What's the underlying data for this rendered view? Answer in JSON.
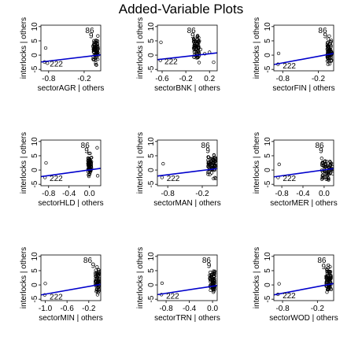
{
  "figure": {
    "title": "Added-Variable Plots",
    "line_color": "#0000cc",
    "point_color": "#000000"
  },
  "chart_data": [
    {
      "type": "scatter",
      "xlabel": "sectorAGR | others",
      "ylabel": "interlocks | others",
      "xlim": [
        -0.93,
        0.08
      ],
      "ylim": [
        -5.5,
        10.5
      ],
      "xticks": [
        -0.8,
        -0.2
      ],
      "xtick_labels": [
        "-0.8",
        "-0.2"
      ],
      "yticks": [
        -5,
        0,
        5,
        10
      ],
      "ytick_labels": [
        "-5",
        "0",
        "5",
        "10"
      ],
      "fit_line": {
        "x": [
          -0.93,
          0.08
        ],
        "y": [
          -2.4,
          0.1
        ]
      },
      "cluster": {
        "x_min": -0.05,
        "x_max": 0.04,
        "y_min": -4.3,
        "y_max": 7.5
      },
      "outliers": [
        {
          "x": -0.85,
          "y": 2.5
        },
        {
          "x": -0.87,
          "y": -2.4
        },
        {
          "x": -0.82,
          "y": -2.8
        }
      ],
      "point_labels": [
        {
          "text": "86",
          "x": -0.18,
          "y": 8.6
        },
        {
          "text": "9",
          "x": -0.12,
          "y": 6.8
        },
        {
          "text": "222",
          "x": -0.78,
          "y": -3.2
        }
      ]
    },
    {
      "type": "scatter",
      "xlabel": "sectorBNK | others",
      "ylabel": "interlocks | others",
      "xlim": [
        -0.68,
        0.33
      ],
      "ylim": [
        -5.5,
        10.5
      ],
      "xticks": [
        -0.6,
        -0.2,
        0.2
      ],
      "xtick_labels": [
        "-0.6",
        "-0.2",
        "0.2"
      ],
      "yticks": [
        -5,
        0,
        5,
        10
      ],
      "ytick_labels": [
        "-5",
        "0",
        "5",
        "10"
      ],
      "fit_line": {
        "x": [
          -0.68,
          0.33
        ],
        "y": [
          -1.6,
          0.8
        ]
      },
      "cluster": {
        "x_min": -0.07,
        "x_max": 0.03,
        "y_min": -4.0,
        "y_max": 9.5
      },
      "outliers": [
        {
          "x": -0.62,
          "y": 4.5
        },
        {
          "x": -0.63,
          "y": -1.8
        },
        {
          "x": 0.05,
          "y": 2.0
        },
        {
          "x": 0.12,
          "y": 0.5
        },
        {
          "x": 0.2,
          "y": 1.0
        },
        {
          "x": 0.27,
          "y": -2.5
        }
      ],
      "point_labels": [
        {
          "text": "86",
          "x": -0.18,
          "y": 8.6
        },
        {
          "text": "9",
          "x": -0.12,
          "y": 6.8
        },
        {
          "text": "222",
          "x": -0.56,
          "y": -2.3
        }
      ]
    },
    {
      "type": "scatter",
      "xlabel": "sectorFIN | others",
      "ylabel": "interlocks | others",
      "xlim": [
        -0.95,
        0.06
      ],
      "ylim": [
        -5.5,
        10.5
      ],
      "xticks": [
        -0.8,
        -0.2
      ],
      "xtick_labels": [
        "-0.8",
        "-0.2"
      ],
      "yticks": [
        -5,
        0,
        5,
        10
      ],
      "ytick_labels": [
        "-5",
        "0",
        "5",
        "10"
      ],
      "fit_line": {
        "x": [
          -0.95,
          0.06
        ],
        "y": [
          -3.3,
          0.6
        ]
      },
      "cluster": {
        "x_min": -0.05,
        "x_max": 0.03,
        "y_min": -4.5,
        "y_max": 7.5
      },
      "outliers": [
        {
          "x": -0.87,
          "y": 0.6
        },
        {
          "x": -0.88,
          "y": -3.2
        }
      ],
      "point_labels": [
        {
          "text": "86",
          "x": -0.2,
          "y": 8.6
        },
        {
          "text": "9",
          "x": -0.12,
          "y": 6.8
        },
        {
          "text": "222",
          "x": -0.8,
          "y": -3.8
        }
      ]
    },
    {
      "type": "scatter",
      "xlabel": "sectorHLD | others",
      "ylabel": "interlocks | others",
      "xlim": [
        -0.95,
        0.22
      ],
      "ylim": [
        -5.5,
        10.5
      ],
      "xticks": [
        -0.8,
        -0.4,
        0.0
      ],
      "xtick_labels": [
        "-0.8",
        "-0.4",
        "0.0"
      ],
      "yticks": [
        -5,
        0,
        5,
        10
      ],
      "ytick_labels": [
        "-5",
        "0",
        "5",
        "10"
      ],
      "fit_line": {
        "x": [
          -0.95,
          0.22
        ],
        "y": [
          -2.3,
          0.6
        ]
      },
      "cluster": {
        "x_min": -0.03,
        "x_max": 0.04,
        "y_min": -4.0,
        "y_max": 7.0
      },
      "outliers": [
        {
          "x": -0.85,
          "y": 2.5
        },
        {
          "x": 0.15,
          "y": 7.8
        },
        {
          "x": 0.16,
          "y": -2.0
        },
        {
          "x": -0.87,
          "y": -2.6
        }
      ],
      "point_labels": [
        {
          "text": "86",
          "x": -0.17,
          "y": 8.6
        },
        {
          "text": "9",
          "x": -0.1,
          "y": 6.8
        },
        {
          "text": "222",
          "x": -0.78,
          "y": -3.0
        }
      ]
    },
    {
      "type": "scatter",
      "xlabel": "sectorMAN | others",
      "ylabel": "interlocks | others",
      "xlim": [
        -0.98,
        0.06
      ],
      "ylim": [
        -5.5,
        10.5
      ],
      "xticks": [
        -0.8,
        -0.2
      ],
      "xtick_labels": [
        "-0.8",
        "-0.2"
      ],
      "yticks": [
        -5,
        0,
        5,
        10
      ],
      "ytick_labels": [
        "-5",
        "0",
        "5",
        "10"
      ],
      "fit_line": {
        "x": [
          -0.98,
          0.06
        ],
        "y": [
          -2.1,
          0.5
        ]
      },
      "cluster": {
        "x_min": -0.1,
        "x_max": 0.04,
        "y_min": -4.2,
        "y_max": 7.5
      },
      "outliers": [
        {
          "x": -0.88,
          "y": 2.2
        },
        {
          "x": -0.9,
          "y": -2.6
        }
      ],
      "point_labels": [
        {
          "text": "86",
          "x": -0.22,
          "y": 8.6
        },
        {
          "text": "9",
          "x": -0.14,
          "y": 6.8
        },
        {
          "text": "222",
          "x": -0.82,
          "y": -3.0
        }
      ]
    },
    {
      "type": "scatter",
      "xlabel": "sectorMER | others",
      "ylabel": "interlocks | others",
      "xlim": [
        -0.95,
        0.18
      ],
      "ylim": [
        -5.5,
        10.5
      ],
      "xticks": [
        -0.8,
        -0.4,
        0.0
      ],
      "xtick_labels": [
        "-0.8",
        "-0.4",
        "0.0"
      ],
      "yticks": [
        -5,
        0,
        5,
        10
      ],
      "ytick_labels": [
        "-5",
        "0",
        "5",
        "10"
      ],
      "fit_line": {
        "x": [
          -0.95,
          0.18
        ],
        "y": [
          -2.4,
          0.5
        ]
      },
      "cluster": {
        "x_min": -0.05,
        "x_max": 0.17,
        "y_min": -4.2,
        "y_max": 5.0
      },
      "outliers": [
        {
          "x": -0.85,
          "y": 2.0
        },
        {
          "x": -0.87,
          "y": -2.6
        }
      ],
      "point_labels": [
        {
          "text": "86",
          "x": -0.17,
          "y": 8.6
        },
        {
          "text": "9",
          "x": -0.1,
          "y": 6.8
        },
        {
          "text": "222",
          "x": -0.78,
          "y": -3.0
        }
      ]
    },
    {
      "type": "scatter",
      "xlabel": "sectorMIN | others",
      "ylabel": "interlocks | others",
      "xlim": [
        -1.08,
        0.02
      ],
      "ylim": [
        -5.5,
        10.5
      ],
      "xticks": [
        -1.0,
        -0.6,
        -0.2
      ],
      "xtick_labels": [
        "-1.0",
        "-0.6",
        "-0.2"
      ],
      "yticks": [
        -5,
        0,
        5,
        10
      ],
      "ytick_labels": [
        "-5",
        "0",
        "5",
        "10"
      ],
      "fit_line": {
        "x": [
          -1.08,
          0.02
        ],
        "y": [
          -3.5,
          0.2
        ]
      },
      "cluster": {
        "x_min": -0.08,
        "x_max": 0.0,
        "y_min": -4.5,
        "y_max": 7.0
      },
      "outliers": [
        {
          "x": -1.0,
          "y": 0.5
        },
        {
          "x": -1.01,
          "y": -3.5
        }
      ],
      "point_labels": [
        {
          "text": "86",
          "x": -0.3,
          "y": 8.6
        },
        {
          "text": "9",
          "x": -0.16,
          "y": 6.8
        },
        {
          "text": "222",
          "x": -0.92,
          "y": -4.2
        }
      ]
    },
    {
      "type": "scatter",
      "xlabel": "sectorTRN | others",
      "ylabel": "interlocks | others",
      "xlim": [
        -0.95,
        0.08
      ],
      "ylim": [
        -5.5,
        10.5
      ],
      "xticks": [
        -0.8,
        -0.4,
        0.0
      ],
      "xtick_labels": [
        "-0.8",
        "-0.4",
        "0.0"
      ],
      "yticks": [
        -5,
        0,
        5,
        10
      ],
      "ytick_labels": [
        "-5",
        "0",
        "5",
        "10"
      ],
      "fit_line": {
        "x": [
          -0.95,
          0.08
        ],
        "y": [
          -3.4,
          -0.2
        ]
      },
      "cluster": {
        "x_min": -0.05,
        "x_max": 0.04,
        "y_min": -4.5,
        "y_max": 7.5
      },
      "outliers": [
        {
          "x": -0.87,
          "y": 0.6
        },
        {
          "x": -0.88,
          "y": -3.4
        }
      ],
      "point_labels": [
        {
          "text": "86",
          "x": -0.18,
          "y": 8.6
        },
        {
          "text": "9",
          "x": -0.1,
          "y": 6.8
        },
        {
          "text": "222",
          "x": -0.8,
          "y": -4.0
        }
      ]
    },
    {
      "type": "scatter",
      "xlabel": "sectorWOD | others",
      "ylabel": "interlocks | others",
      "xlim": [
        -0.95,
        0.08
      ],
      "ylim": [
        -5.5,
        10.5
      ],
      "xticks": [
        -0.8,
        -0.2
      ],
      "xtick_labels": [
        "-0.8",
        "-0.2"
      ],
      "yticks": [
        -5,
        0,
        5,
        10
      ],
      "ytick_labels": [
        "-5",
        "0",
        "5",
        "10"
      ],
      "fit_line": {
        "x": [
          -0.95,
          0.08
        ],
        "y": [
          -3.5,
          0.5
        ]
      },
      "cluster": {
        "x_min": -0.05,
        "x_max": 0.04,
        "y_min": -4.5,
        "y_max": 7.5
      },
      "outliers": [
        {
          "x": -0.86,
          "y": 0.4
        },
        {
          "x": -0.88,
          "y": -3.3
        }
      ],
      "point_labels": [
        {
          "text": "86",
          "x": -0.2,
          "y": 8.6
        },
        {
          "text": "9",
          "x": -0.13,
          "y": 6.4
        },
        {
          "text": "8",
          "x": -0.05,
          "y": 6.4
        },
        {
          "text": "222",
          "x": -0.8,
          "y": -3.9
        }
      ]
    }
  ]
}
